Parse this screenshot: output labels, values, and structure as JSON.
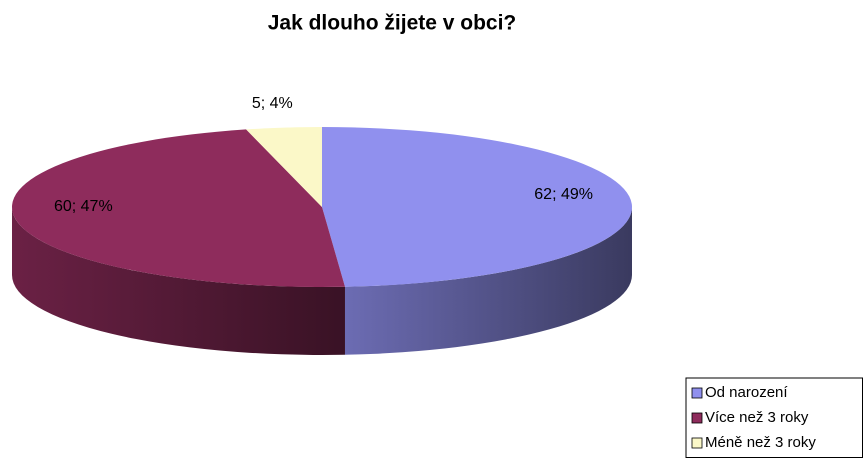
{
  "chart_data": {
    "type": "pie3d",
    "title": "Jak dlouho žijete v obci?",
    "categories": [
      "Od narození",
      "Více než 3 roky",
      "Méně než 3 roky"
    ],
    "values": [
      62,
      60,
      5
    ],
    "value_labels": [
      "62; 49%",
      "60; 47%",
      "5; 4%"
    ],
    "colors": [
      "#9090ee",
      "#8e2c5c",
      "#fbf8c8"
    ],
    "legend": "bottom-right"
  }
}
